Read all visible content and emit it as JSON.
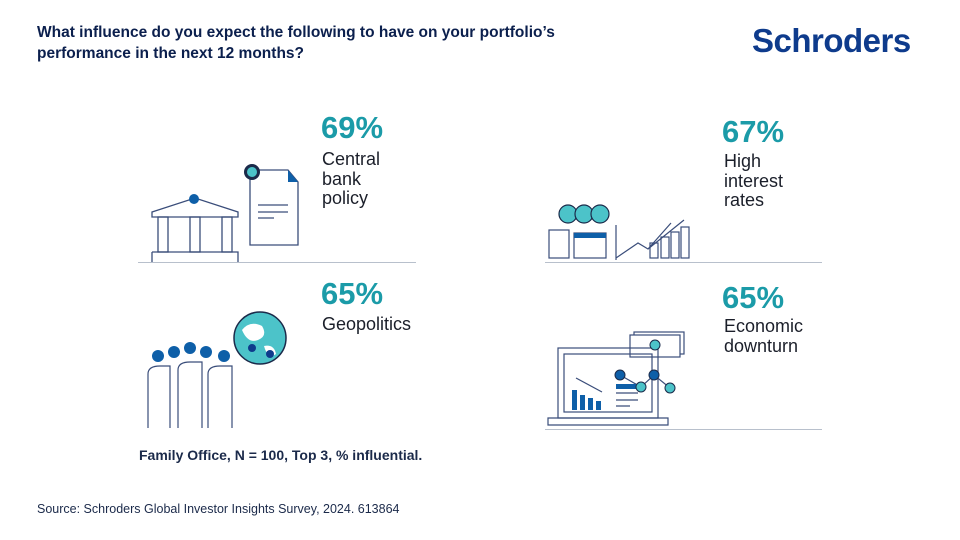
{
  "title": "What influence do you expect the following to have on your portfolio’s performance in the next 12 months?",
  "logo": "Schroders",
  "items": [
    {
      "value": "69%",
      "label": "Central bank policy",
      "icon": "bank-icon"
    },
    {
      "value": "67%",
      "label": "High interest rates",
      "icon": "growth-chart-icon"
    },
    {
      "value": "65%",
      "label": "Geopolitics",
      "icon": "people-globe-icon"
    },
    {
      "value": "65%",
      "label": "Economic downturn",
      "icon": "laptop-chart-icon"
    }
  ],
  "footnote": "Family Office, N = 100, Top 3, % influential.",
  "source": "Source: Schroders Global Investor Insights Survey, 2024. 613864",
  "colors": {
    "navy": "#0b1f4d",
    "teal": "#1b9ba8",
    "accent": "#0e5fa8"
  }
}
